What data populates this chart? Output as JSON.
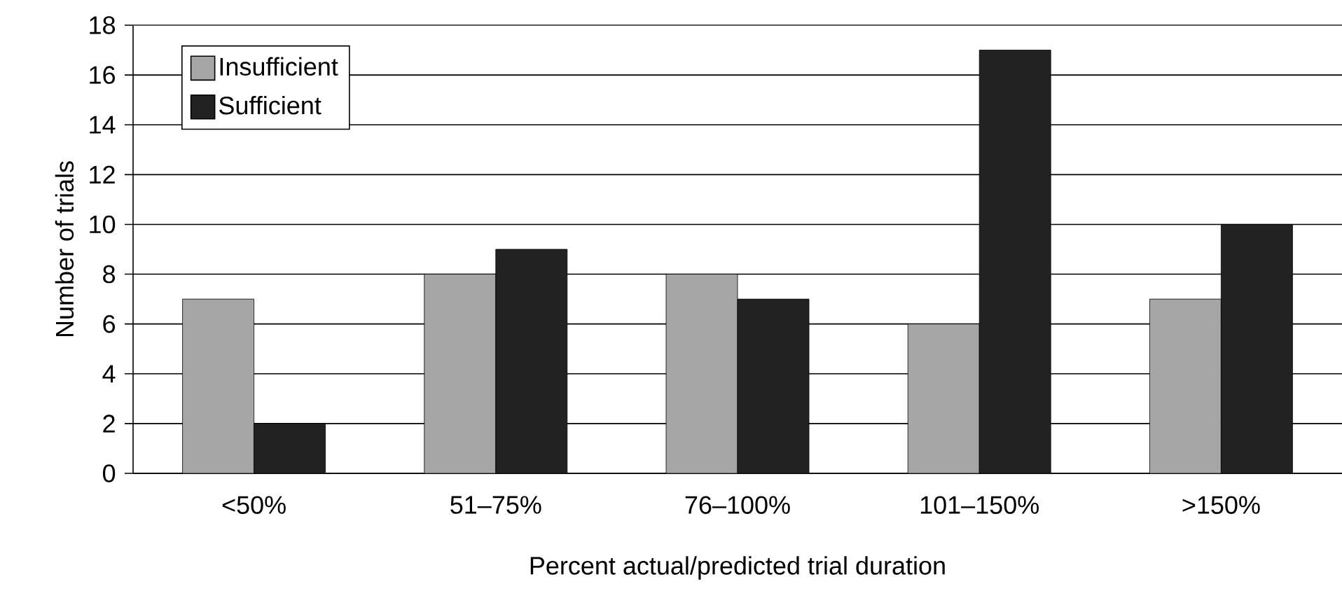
{
  "chart_data": {
    "type": "bar",
    "xlabel": "Percent actual/predicted trial duration",
    "ylabel": "Number of trials",
    "categories": [
      "<50%",
      "51–75%",
      "76–100%",
      "101–150%",
      ">150%"
    ],
    "series": [
      {
        "name": "Insufficient",
        "color": "#a6a6a6",
        "values": [
          7,
          8,
          8,
          6,
          7
        ]
      },
      {
        "name": "Sufficient",
        "color": "#222222",
        "values": [
          2,
          9,
          7,
          17,
          10
        ]
      }
    ],
    "ylim": [
      0,
      18
    ],
    "yticks": [
      0,
      2,
      4,
      6,
      8,
      10,
      12,
      14,
      16,
      18
    ],
    "grid": "y",
    "legend": "top left"
  }
}
